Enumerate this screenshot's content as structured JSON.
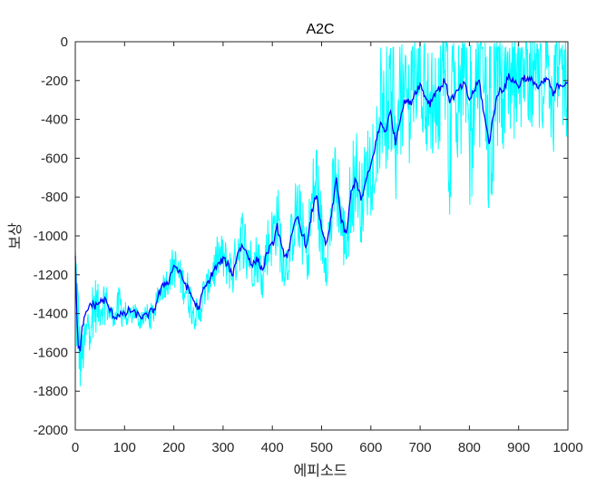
{
  "chart_data": {
    "type": "line",
    "title": "A2C",
    "xlabel": "에피소드",
    "ylabel": "보상",
    "xlim": [
      0,
      1000
    ],
    "ylim": [
      -2000,
      0
    ],
    "xticks": [
      0,
      100,
      200,
      300,
      400,
      500,
      600,
      700,
      800,
      900,
      1000
    ],
    "yticks": [
      -2000,
      -1800,
      -1600,
      -1400,
      -1200,
      -1000,
      -800,
      -600,
      -400,
      -200,
      0
    ],
    "grid": false,
    "legend": "none",
    "colors": {
      "raw": "#00FFFF",
      "smoothed": "#0000FF",
      "axis": "#262626"
    },
    "series": [
      {
        "role": "raw",
        "x": [
          0,
          10,
          20,
          30,
          40,
          50,
          60,
          70,
          80,
          90,
          100,
          110,
          120,
          130,
          140,
          150,
          160,
          170,
          180,
          190,
          200,
          210,
          220,
          230,
          240,
          250,
          260,
          270,
          280,
          290,
          300,
          310,
          320,
          330,
          340,
          350,
          360,
          370,
          380,
          390,
          400,
          410,
          420,
          430,
          440,
          450,
          460,
          470,
          480,
          490,
          500,
          510,
          520,
          530,
          540,
          550,
          560,
          570,
          580,
          590,
          600,
          610,
          620,
          630,
          640,
          650,
          660,
          670,
          680,
          690,
          700,
          710,
          720,
          730,
          740,
          750,
          760,
          770,
          780,
          790,
          800,
          810,
          820,
          830,
          840,
          850,
          860,
          870,
          880,
          890,
          900,
          910,
          920,
          930,
          940,
          950,
          960,
          970,
          980,
          990,
          1000
        ],
        "values": [
          -1200,
          -1650,
          -1550,
          -1400,
          -1350,
          -1380,
          -1320,
          -1400,
          -1420,
          -1350,
          -1400,
          -1420,
          -1380,
          -1440,
          -1400,
          -1420,
          -1390,
          -1300,
          -1250,
          -1220,
          -1150,
          -1200,
          -1250,
          -1300,
          -1380,
          -1420,
          -1300,
          -1250,
          -1180,
          -1100,
          -1120,
          -1150,
          -1200,
          -1050,
          -1000,
          -1080,
          -1150,
          -1100,
          -1200,
          -1050,
          -1000,
          -900,
          -1100,
          -1150,
          -1000,
          -850,
          -950,
          -1100,
          -850,
          -700,
          -1000,
          -1100,
          -900,
          -650,
          -950,
          -1050,
          -750,
          -650,
          -850,
          -700,
          -600,
          -450,
          -350,
          -450,
          -300,
          -600,
          -350,
          -250,
          -300,
          -200,
          -150,
          -250,
          -350,
          -250,
          -200,
          -150,
          -350,
          -300,
          -250,
          -200,
          -350,
          -250,
          -100,
          -400,
          -550,
          -350,
          -200,
          -250,
          -150,
          -200,
          -250,
          -150,
          -200,
          -180,
          -250,
          -200,
          -150,
          -350,
          -200,
          -250,
          -200
        ],
        "note_lower_envelope": [
          -1750,
          -1850,
          -1700,
          -1600,
          -1550,
          -1500,
          -1480,
          -1490,
          -1480,
          -1500,
          -1500,
          -1480,
          -1470,
          -1500,
          -1480,
          -1500,
          -1470,
          -1380,
          -1350,
          -1320,
          -1300,
          -1320,
          -1380,
          -1450,
          -1500,
          -1520,
          -1420,
          -1350,
          -1300,
          -1250,
          -1280,
          -1300,
          -1350,
          -1250,
          -1200,
          -1250,
          -1300,
          -1280,
          -1320,
          -1250,
          -1200,
          -1150,
          -1300,
          -1300,
          -1200,
          -1100,
          -1150,
          -1300,
          -1150,
          -1000,
          -1250,
          -1300,
          -1200,
          -950,
          -1200,
          -1250,
          -1050,
          -950,
          -1100,
          -1000,
          -900,
          -800,
          -700,
          -800,
          -650,
          -900,
          -700,
          -600,
          -650,
          -550,
          -500,
          -600,
          -700,
          -600,
          -550,
          -500,
          -1050,
          -650,
          -600,
          -550,
          -900,
          -700,
          -550,
          -1000,
          -1200,
          -900,
          -600,
          -550,
          -450,
          -500,
          -550,
          -450,
          -500,
          -480,
          -550,
          -500,
          -450,
          -750,
          -500,
          -550,
          -500
        ]
      },
      {
        "role": "smoothed",
        "x": [
          0,
          5,
          10,
          15,
          20,
          30,
          40,
          50,
          60,
          70,
          80,
          90,
          100,
          110,
          120,
          130,
          140,
          150,
          160,
          170,
          180,
          190,
          200,
          210,
          220,
          230,
          240,
          250,
          260,
          270,
          280,
          290,
          300,
          310,
          320,
          330,
          340,
          350,
          360,
          370,
          380,
          390,
          400,
          410,
          420,
          430,
          440,
          450,
          460,
          470,
          480,
          490,
          500,
          510,
          520,
          530,
          540,
          550,
          560,
          570,
          580,
          590,
          600,
          610,
          620,
          630,
          640,
          650,
          660,
          670,
          680,
          690,
          700,
          710,
          720,
          730,
          740,
          750,
          760,
          770,
          780,
          790,
          800,
          810,
          820,
          830,
          840,
          850,
          860,
          870,
          880,
          890,
          900,
          910,
          920,
          930,
          940,
          950,
          960,
          970,
          980,
          990,
          1000
        ],
        "values": [
          -1120,
          -1550,
          -1600,
          -1450,
          -1420,
          -1350,
          -1360,
          -1340,
          -1330,
          -1380,
          -1420,
          -1400,
          -1410,
          -1380,
          -1400,
          -1410,
          -1420,
          -1400,
          -1380,
          -1300,
          -1250,
          -1230,
          -1150,
          -1180,
          -1230,
          -1280,
          -1330,
          -1380,
          -1280,
          -1240,
          -1180,
          -1150,
          -1120,
          -1150,
          -1200,
          -1080,
          -1050,
          -1100,
          -1150,
          -1120,
          -1180,
          -1080,
          -1050,
          -950,
          -1080,
          -1100,
          -1000,
          -900,
          -980,
          -1060,
          -880,
          -780,
          -980,
          -1050,
          -900,
          -700,
          -920,
          -1000,
          -780,
          -700,
          -820,
          -720,
          -640,
          -520,
          -420,
          -460,
          -360,
          -520,
          -380,
          -300,
          -320,
          -260,
          -220,
          -280,
          -320,
          -260,
          -240,
          -200,
          -300,
          -280,
          -240,
          -220,
          -300,
          -250,
          -200,
          -380,
          -520,
          -360,
          -250,
          -240,
          -180,
          -200,
          -230,
          -180,
          -200,
          -200,
          -240,
          -210,
          -190,
          -280,
          -220,
          -220,
          -200
        ]
      }
    ]
  }
}
